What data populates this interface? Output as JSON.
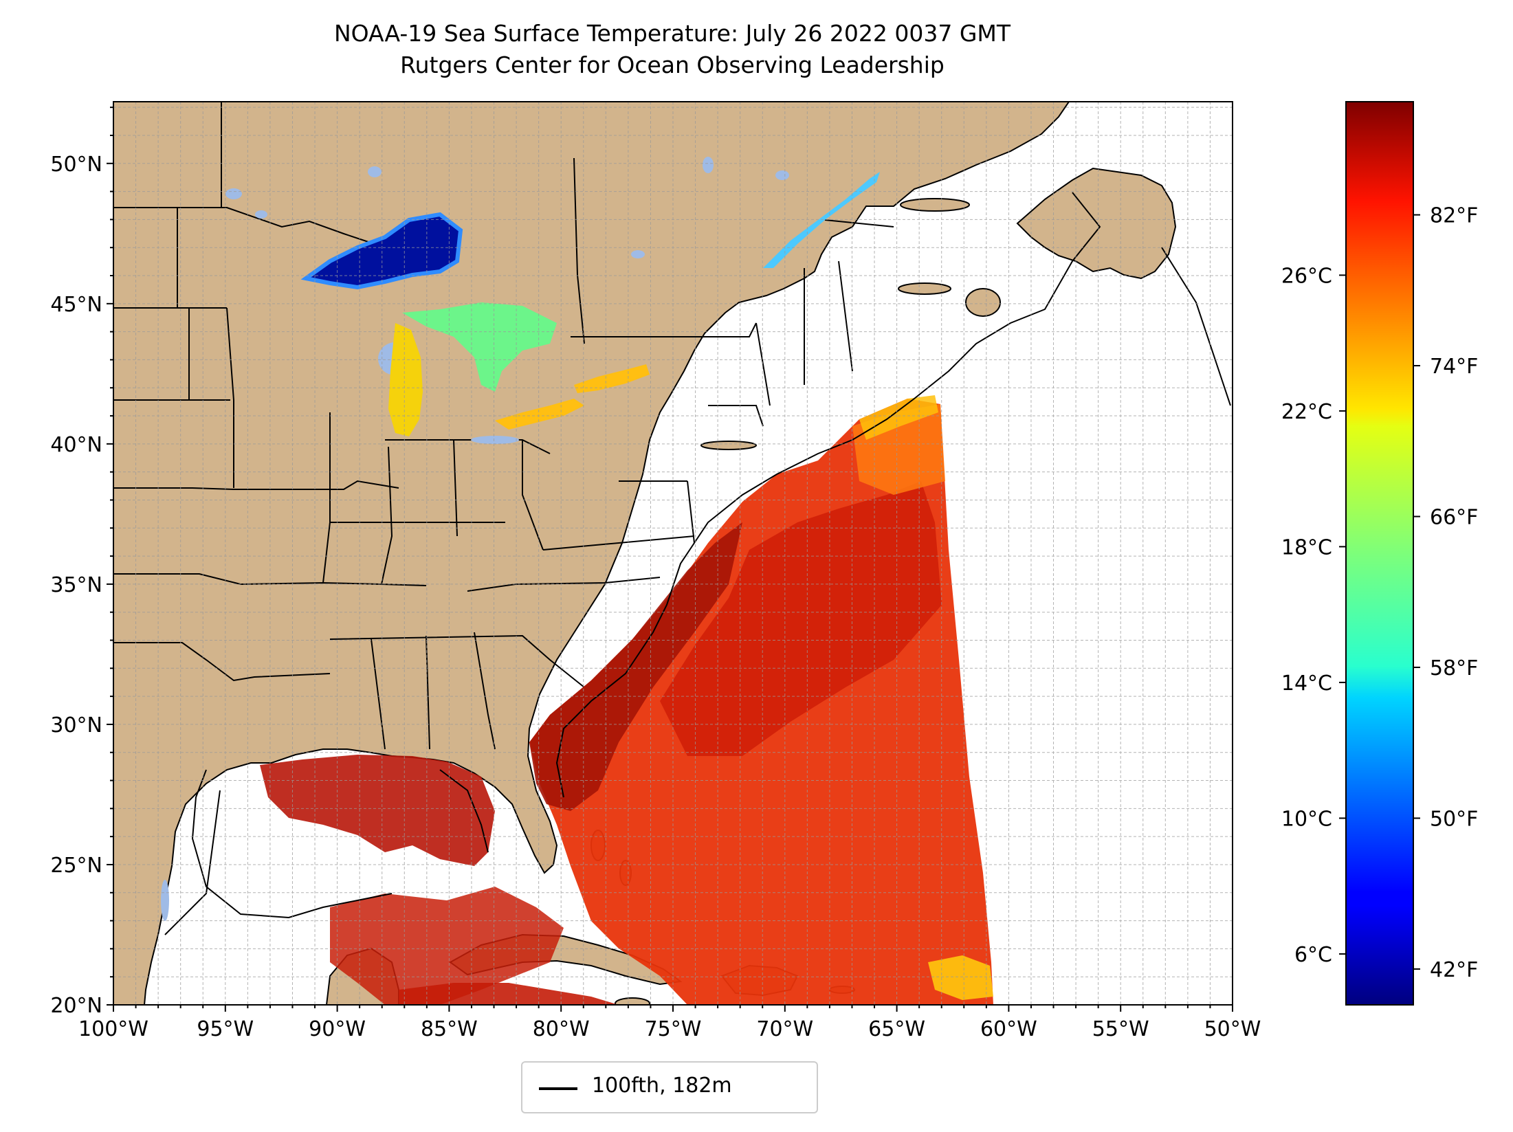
{
  "title": {
    "line1": "NOAA-19 Sea Surface Temperature: July 26 2022 0037 GMT",
    "line2": "Rutgers Center for Ocean Observing Leadership"
  },
  "map": {
    "extent": {
      "lon_min": -100,
      "lon_max": -50,
      "lat_min": 20,
      "lat_max": 52.2
    },
    "land_color": "#d2b48c",
    "lake_color": "#9fbbe6",
    "grid": true,
    "lon_ticks": [
      {
        "value": -100,
        "label": "100°W"
      },
      {
        "value": -95,
        "label": "95°W"
      },
      {
        "value": -90,
        "label": "90°W"
      },
      {
        "value": -85,
        "label": "85°W"
      },
      {
        "value": -80,
        "label": "80°W"
      },
      {
        "value": -75,
        "label": "75°W"
      },
      {
        "value": -70,
        "label": "70°W"
      },
      {
        "value": -65,
        "label": "65°W"
      },
      {
        "value": -60,
        "label": "60°W"
      },
      {
        "value": -55,
        "label": "55°W"
      },
      {
        "value": -50,
        "label": "50°W"
      }
    ],
    "lat_ticks": [
      {
        "value": 20,
        "label": "20°N"
      },
      {
        "value": 25,
        "label": "25°N"
      },
      {
        "value": 30,
        "label": "30°N"
      },
      {
        "value": 35,
        "label": "35°N"
      },
      {
        "value": 40,
        "label": "40°N"
      },
      {
        "value": 45,
        "label": "45°N"
      },
      {
        "value": 50,
        "label": "50°N"
      }
    ]
  },
  "legend": {
    "label": "100fth, 182m",
    "line_color": "#000000"
  },
  "colorbar": {
    "colormap": "jet",
    "range_f": [
      40.1,
      88.0
    ],
    "fahrenheit_ticks": [
      {
        "value": 42,
        "label": "42°F"
      },
      {
        "value": 50,
        "label": "50°F"
      },
      {
        "value": 58,
        "label": "58°F"
      },
      {
        "value": 66,
        "label": "66°F"
      },
      {
        "value": 74,
        "label": "74°F"
      },
      {
        "value": 82,
        "label": "82°F"
      }
    ],
    "celsius_ticks": [
      {
        "value": 6,
        "label": "6°C"
      },
      {
        "value": 10,
        "label": "10°C"
      },
      {
        "value": 14,
        "label": "14°C"
      },
      {
        "value": 18,
        "label": "18°C"
      },
      {
        "value": 22,
        "label": "22°C"
      },
      {
        "value": 26,
        "label": "26°C"
      }
    ]
  },
  "chart_data": {
    "type": "heatmap",
    "title": "NOAA-19 Sea Surface Temperature: July 26 2022 0037 GMT",
    "subtitle": "Rutgers Center for Ocean Observing Leadership",
    "xlabel": "",
    "ylabel": "",
    "xlim": [
      -100,
      -50
    ],
    "ylim": [
      20,
      52.2
    ],
    "legend_entry": "100fth, 182m",
    "legend_location": "bottom-center",
    "value_range_f": [
      40.1,
      88.0
    ],
    "regions": [
      {
        "name": "Gulf Stream / Sargasso Sea",
        "approx_temp_f": 84
      },
      {
        "name": "Gulf of Mexico",
        "approx_temp_f": 86
      },
      {
        "name": "Eastern swath edge",
        "approx_temp_f": 78
      },
      {
        "name": "Lake Superior",
        "approx_temp_f": 46
      },
      {
        "name": "Lake Huron",
        "approx_temp_f": 62
      },
      {
        "name": "Lake Michigan",
        "approx_temp_f": 70
      },
      {
        "name": "Lake Erie",
        "approx_temp_f": 74
      },
      {
        "name": "Lake Ontario",
        "approx_temp_f": 73
      },
      {
        "name": "St. Lawrence Estuary",
        "approx_temp_f": 56
      }
    ]
  }
}
